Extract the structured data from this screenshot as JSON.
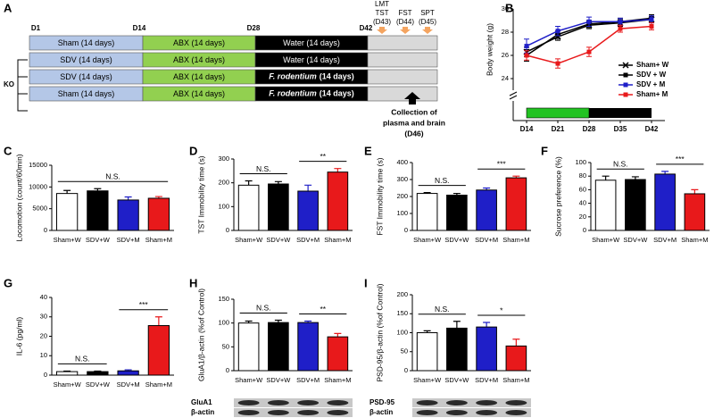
{
  "diagram": {
    "panel": "A",
    "days": [
      "D1",
      "D14",
      "D28",
      "D42"
    ],
    "tests": [
      [
        "LMT",
        "TST",
        "(D43)"
      ],
      [
        "FST",
        "(D44)"
      ],
      [
        "SPT",
        "(D45)"
      ]
    ],
    "group_label": "KO",
    "rows": [
      [
        "Sham  (14 days)",
        "ABX (14 days)",
        "Water (14 days)"
      ],
      [
        "SDV  (14 days)",
        "ABX (14 days)",
        "Water (14 days)"
      ],
      [
        "SDV  (14 days)",
        "ABX (14 days)",
        [
          "F. rodentium",
          "(14 days)"
        ]
      ],
      [
        "Sham  (14 days)",
        "ABX (14 days)",
        [
          "F. rodentium",
          "(14 days)"
        ]
      ]
    ],
    "collection": [
      "Collection of",
      "plasma and brain",
      "(D46)"
    ]
  },
  "chart_data": [
    {
      "panel": "B",
      "type": "line",
      "ylabel": "Body weight (g)",
      "categories": [
        "D14",
        "D21",
        "D28",
        "D35",
        "D42"
      ],
      "ylim": [
        23,
        30
      ],
      "yticks": [
        24,
        26,
        28,
        30
      ],
      "legend": "right",
      "series": [
        {
          "name": "Sham+ W",
          "color": "#000000",
          "marker": "cross",
          "values": [
            26.3,
            27.6,
            28.6,
            28.8,
            29.1
          ],
          "errors": [
            0.4,
            0.3,
            0.3,
            0.3,
            0.2
          ]
        },
        {
          "name": "SDV + W",
          "color": "#000000",
          "marker": "square",
          "values": [
            26.0,
            27.8,
            28.7,
            28.9,
            29.2
          ],
          "errors": [
            0.5,
            0.3,
            0.3,
            0.3,
            0.3
          ]
        },
        {
          "name": "SDV + M",
          "color": "#1f1fc8",
          "marker": "square",
          "values": [
            26.8,
            28.1,
            28.9,
            28.9,
            29.1
          ],
          "errors": [
            0.6,
            0.4,
            0.4,
            0.3,
            0.3
          ]
        },
        {
          "name": "Sham+ M",
          "color": "#e8191b",
          "marker": "square",
          "values": [
            26.0,
            25.3,
            26.3,
            28.3,
            28.5
          ],
          "errors": [
            0.4,
            0.4,
            0.4,
            0.3,
            0.3
          ]
        }
      ]
    },
    {
      "panel": "C",
      "type": "bar",
      "ylabel": "Locomotion (count/60min)",
      "categories": [
        "Sham+W",
        "SDV+W",
        "SDV+M",
        "Sham+M"
      ],
      "colors": [
        "#ffffff",
        "#000000",
        "#1f1fc8",
        "#e8191b"
      ],
      "ylim": [
        0,
        15000
      ],
      "yticks": [
        0,
        5000,
        10000,
        15000
      ],
      "values": [
        8500,
        9100,
        7000,
        7400
      ],
      "errors": [
        700,
        500,
        700,
        400
      ],
      "annotations": [
        {
          "text": "N.S.",
          "from": 0,
          "to": 3
        }
      ]
    },
    {
      "panel": "D",
      "type": "bar",
      "ylabel": "TST Immobility time (s)",
      "categories": [
        "Sham+W",
        "SDV+W",
        "SDV+M",
        "Sham+M"
      ],
      "colors": [
        "#ffffff",
        "#000000",
        "#1f1fc8",
        "#e8191b"
      ],
      "ylim": [
        0,
        300
      ],
      "yticks": [
        0,
        100,
        200,
        300
      ],
      "values": [
        190,
        195,
        165,
        245
      ],
      "errors": [
        18,
        10,
        25,
        15
      ],
      "annotations": [
        {
          "text": "N.S.",
          "from": 0,
          "to": 1
        },
        {
          "text": "**",
          "from": 2,
          "to": 3
        }
      ]
    },
    {
      "panel": "E",
      "type": "bar",
      "ylabel": "FST Immobility time (s)",
      "categories": [
        "Sham+W",
        "SDV+W",
        "SDV+M",
        "Sham+M"
      ],
      "colors": [
        "#ffffff",
        "#000000",
        "#1f1fc8",
        "#e8191b"
      ],
      "ylim": [
        0,
        400
      ],
      "yticks": [
        0,
        100,
        200,
        300,
        400
      ],
      "values": [
        218,
        208,
        238,
        310
      ],
      "errors": [
        5,
        10,
        12,
        10
      ],
      "annotations": [
        {
          "text": "N.S.",
          "from": 0,
          "to": 1
        },
        {
          "text": "***",
          "from": 2,
          "to": 3
        }
      ]
    },
    {
      "panel": "F",
      "type": "bar",
      "ylabel": "Sucrose preference (%)",
      "categories": [
        "Sham+W",
        "SDV+W",
        "SDV+M",
        "Sham+M"
      ],
      "colors": [
        "#ffffff",
        "#000000",
        "#1f1fc8",
        "#e8191b"
      ],
      "ylim": [
        0,
        100
      ],
      "yticks": [
        0,
        20,
        40,
        60,
        80,
        100
      ],
      "values": [
        74,
        75,
        83,
        54
      ],
      "errors": [
        6,
        4,
        4,
        6
      ],
      "annotations": [
        {
          "text": "N.S.",
          "from": 0,
          "to": 1
        },
        {
          "text": "***",
          "from": 2,
          "to": 3
        }
      ]
    },
    {
      "panel": "G",
      "type": "bar",
      "ylabel": "IL-6 (pg/ml)",
      "categories": [
        "Sham+W",
        "SDV+W",
        "SDV+M",
        "Sham+M"
      ],
      "colors": [
        "#ffffff",
        "#000000",
        "#1f1fc8",
        "#e8191b"
      ],
      "ylim": [
        0,
        40
      ],
      "yticks": [
        0,
        10,
        20,
        30,
        40
      ],
      "values": [
        1.8,
        1.8,
        2.2,
        25.5
      ],
      "errors": [
        0.3,
        0.3,
        0.5,
        4.5
      ],
      "annotations": [
        {
          "text": "N.S.",
          "from": 0,
          "to": 1
        },
        {
          "text": "***",
          "from": 2,
          "to": 3
        }
      ]
    },
    {
      "panel": "H",
      "type": "bar",
      "ylabel": "GluA1/β-actin (%of Control)",
      "categories": [
        "Sham+W",
        "SDV+W",
        "SDV+M",
        "Sham+M"
      ],
      "colors": [
        "#ffffff",
        "#000000",
        "#1f1fc8",
        "#e8191b"
      ],
      "ylim": [
        0,
        150
      ],
      "yticks": [
        0,
        50,
        100,
        150
      ],
      "values": [
        100,
        101,
        101,
        71
      ],
      "errors": [
        4,
        5,
        3,
        7
      ],
      "annotations": [
        {
          "text": "N.S.",
          "from": 0,
          "to": 1
        },
        {
          "text": "**",
          "from": 2,
          "to": 3
        }
      ],
      "blot_labels": [
        "GluA1",
        "β-actin"
      ]
    },
    {
      "panel": "I",
      "type": "bar",
      "ylabel": "PSD-95/β-actin (%of Control)",
      "categories": [
        "Sham+W",
        "SDV+W",
        "SDV+M",
        "Sham+M"
      ],
      "colors": [
        "#ffffff",
        "#000000",
        "#1f1fc8",
        "#e8191b"
      ],
      "ylim": [
        0,
        200
      ],
      "yticks": [
        0,
        50,
        100,
        150,
        200
      ],
      "values": [
        100,
        112,
        115,
        65
      ],
      "errors": [
        5,
        18,
        12,
        18
      ],
      "annotations": [
        {
          "text": "N.S.",
          "from": 0,
          "to": 1
        },
        {
          "text": "*",
          "from": 2,
          "to": 3
        }
      ],
      "blot_labels": [
        "PSD-95",
        "β-actin"
      ]
    }
  ]
}
